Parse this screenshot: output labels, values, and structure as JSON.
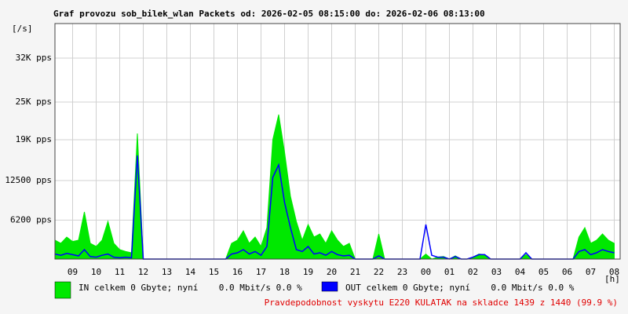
{
  "chart_data": {
    "type": "line",
    "title": "Graf provozu sob_bilek_wlan Packets od: 2026-02-05 08:15:00 do: 2026-02-06 08:13:00",
    "y_label": "[/s]",
    "x_label": "[h]",
    "footer": "Pravdepodobnost vyskytu E220 KULATAK na skladce 1439 z 1440 (99.9 %)",
    "xlim": [
      8.25,
      32.25
    ],
    "xticks": [
      {
        "value": 9,
        "label": "09"
      },
      10,
      11,
      12,
      13,
      14,
      15,
      16,
      17,
      18,
      19,
      20,
      21,
      22,
      23,
      {
        "value": 24,
        "label": "00"
      },
      {
        "value": 25,
        "label": "01"
      },
      {
        "value": 26,
        "label": "02"
      },
      {
        "value": 27,
        "label": "03"
      },
      {
        "value": 28,
        "label": "04"
      },
      {
        "value": 29,
        "label": "05"
      },
      {
        "value": 30,
        "label": "06"
      },
      {
        "value": 31,
        "label": "07"
      },
      {
        "value": 32,
        "label": "08"
      }
    ],
    "ylim": [
      0,
      37500
    ],
    "yticks": [
      {
        "value": 6200,
        "label": "6200 pps"
      },
      {
        "value": 12500,
        "label": "12500 pps"
      },
      {
        "value": 19000,
        "label": "19K pps"
      },
      {
        "value": 25000,
        "label": "25K pps"
      },
      {
        "value": 32000,
        "label": "32K pps"
      }
    ],
    "grid": true,
    "x": [
      8.25,
      8.5,
      8.75,
      9,
      9.25,
      9.5,
      9.75,
      10,
      10.25,
      10.5,
      10.75,
      11,
      11.25,
      11.5,
      11.75,
      12,
      12.25,
      12.5,
      12.75,
      13,
      13.25,
      13.5,
      13.75,
      14,
      14.25,
      14.5,
      14.75,
      15,
      15.25,
      15.5,
      15.75,
      16,
      16.25,
      16.5,
      16.75,
      17,
      17.25,
      17.5,
      17.75,
      18,
      18.25,
      18.5,
      18.75,
      19,
      19.25,
      19.5,
      19.75,
      20,
      20.25,
      20.5,
      20.75,
      21,
      21.25,
      21.5,
      21.75,
      22,
      22.25,
      22.5,
      22.75,
      23,
      23.25,
      23.5,
      23.75,
      24,
      24.25,
      24.5,
      24.75,
      25,
      25.25,
      25.5,
      25.75,
      26,
      26.25,
      26.5,
      26.75,
      27,
      27.25,
      27.5,
      27.75,
      28,
      28.25,
      28.5,
      28.75,
      29,
      29.25,
      29.5,
      29.75,
      30,
      30.25,
      30.5,
      30.75,
      31,
      31.25,
      31.5,
      31.75,
      32
    ],
    "series": [
      {
        "name": "IN celkem 0 Gbyte; nyní    0.0 Mbit/s 0.0 %",
        "color": "#00e800",
        "style": "area",
        "values": [
          3000,
          2500,
          3500,
          2800,
          3000,
          7500,
          2500,
          2000,
          3000,
          6000,
          2500,
          1500,
          1200,
          1000,
          20000,
          0,
          0,
          0,
          0,
          0,
          0,
          0,
          0,
          0,
          0,
          0,
          0,
          0,
          0,
          0,
          2500,
          3000,
          4500,
          2500,
          3500,
          2000,
          5000,
          19000,
          23000,
          17000,
          10000,
          6000,
          3000,
          5500,
          3500,
          4000,
          2500,
          4500,
          3000,
          2000,
          2500,
          0,
          0,
          0,
          0,
          4000,
          0,
          0,
          0,
          0,
          0,
          0,
          0,
          800,
          0,
          300,
          400,
          0,
          500,
          0,
          0,
          300,
          800,
          700,
          0,
          0,
          0,
          0,
          0,
          0,
          700,
          0,
          0,
          0,
          0,
          0,
          0,
          0,
          0,
          3500,
          5000,
          2500,
          3000,
          4000,
          3000,
          2500
        ]
      },
      {
        "name": "OUT celkem 0 Gbyte; nyní    0.0 Mbit/s 0.0 %",
        "color": "#0000ff",
        "style": "line",
        "values": [
          800,
          600,
          900,
          700,
          500,
          1500,
          400,
          300,
          600,
          800,
          300,
          200,
          300,
          200,
          16500,
          0,
          0,
          0,
          0,
          0,
          0,
          0,
          0,
          0,
          0,
          0,
          0,
          0,
          0,
          0,
          800,
          1000,
          1500,
          800,
          1200,
          600,
          2000,
          13000,
          15000,
          9000,
          5000,
          1500,
          1200,
          2000,
          800,
          1000,
          600,
          1200,
          700,
          500,
          600,
          0,
          0,
          0,
          0,
          500,
          0,
          0,
          0,
          0,
          0,
          0,
          0,
          5500,
          600,
          300,
          300,
          0,
          400,
          0,
          0,
          300,
          700,
          700,
          0,
          0,
          0,
          0,
          0,
          0,
          1000,
          0,
          0,
          0,
          0,
          0,
          0,
          0,
          0,
          1200,
          1500,
          700,
          1000,
          1500,
          1200,
          1000
        ]
      }
    ]
  }
}
